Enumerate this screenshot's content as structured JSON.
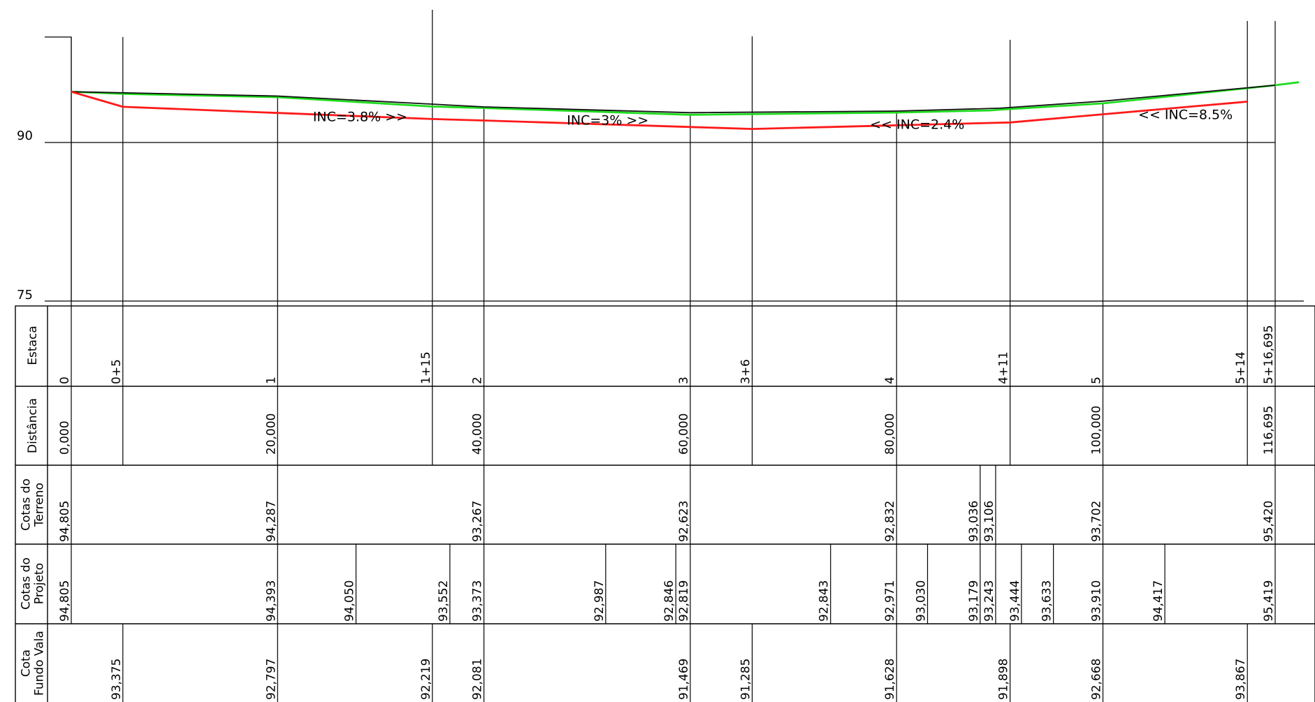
{
  "axis": {
    "y_max_label": "90",
    "y_min_label": "75"
  },
  "chart_data": {
    "type": "line",
    "title": "",
    "xlabel": "",
    "ylabel": "",
    "ylim": [
      75,
      102
    ],
    "xlim": [
      0,
      116.695
    ],
    "series": [
      {
        "color": "#1fdc1f",
        "points": [
          [
            0,
            94.805
          ],
          [
            5,
            94.6
          ],
          [
            20,
            94.287
          ],
          [
            35,
            93.4
          ],
          [
            40,
            93.267
          ],
          [
            60,
            92.623
          ],
          [
            80,
            92.832
          ],
          [
            89,
            93.036
          ],
          [
            90,
            93.106
          ],
          [
            100,
            93.702
          ],
          [
            116.695,
            95.42
          ],
          [
            119,
            95.7
          ]
        ]
      },
      {
        "color": "#111111",
        "points": [
          [
            0,
            94.805
          ],
          [
            20,
            94.393
          ],
          [
            40,
            93.373
          ],
          [
            60,
            92.819
          ],
          [
            80,
            92.971
          ],
          [
            90,
            93.243
          ],
          [
            100,
            93.91
          ],
          [
            116.695,
            95.419
          ]
        ]
      },
      {
        "color": "#ff1a1a",
        "points": [
          [
            0,
            94.805
          ],
          [
            5,
            93.375
          ],
          [
            20,
            92.797
          ],
          [
            35,
            92.219
          ],
          [
            40,
            92.081
          ],
          [
            60,
            91.469
          ],
          [
            66,
            91.285
          ],
          [
            80,
            91.628
          ],
          [
            91,
            91.898
          ],
          [
            100,
            92.668
          ],
          [
            114,
            93.867
          ]
        ]
      }
    ],
    "annotations": [
      {
        "text": "INC=3.8% >>",
        "x": 28,
        "y": 92.0
      },
      {
        "text": "INC=3% >>",
        "x": 52,
        "y": 91.7
      },
      {
        "text": "<< INC=2.4%",
        "x": 82,
        "y": 91.3
      },
      {
        "text": "<< INC=8.5%",
        "x": 108,
        "y": 92.2
      }
    ]
  },
  "table": {
    "row_labels": [
      [
        "Estaca"
      ],
      [
        "Distância"
      ],
      [
        "Cotas do",
        "Terreno"
      ],
      [
        "Cotas do",
        "Projeto"
      ],
      [
        "Cota",
        "Fundo Vala"
      ]
    ],
    "estaca": [
      {
        "x": 0,
        "text": "0"
      },
      {
        "x": 5,
        "text": "0+5"
      },
      {
        "x": 20,
        "text": "1"
      },
      {
        "x": 35,
        "text": "1+15"
      },
      {
        "x": 40,
        "text": "2"
      },
      {
        "x": 60,
        "text": "3"
      },
      {
        "x": 66,
        "text": "3+6"
      },
      {
        "x": 80,
        "text": "4"
      },
      {
        "x": 91,
        "text": "4+11"
      },
      {
        "x": 100,
        "text": "5"
      },
      {
        "x": 114,
        "text": "5+14"
      },
      {
        "x": 116.695,
        "text": "5+16,695"
      }
    ],
    "distancia": [
      {
        "x": 0,
        "text": "0,000"
      },
      {
        "x": 20,
        "text": "20,000"
      },
      {
        "x": 40,
        "text": "40,000"
      },
      {
        "x": 60,
        "text": "60,000"
      },
      {
        "x": 80,
        "text": "80,000"
      },
      {
        "x": 100,
        "text": "100,000"
      },
      {
        "x": 116.695,
        "text": "116,695"
      }
    ],
    "cotas_terreno": [
      {
        "x": 0,
        "text": "94,805"
      },
      {
        "x": 20,
        "text": "94,287"
      },
      {
        "x": 40,
        "text": "93,267"
      },
      {
        "x": 60,
        "text": "92,623"
      },
      {
        "x": 80,
        "text": "92,832"
      },
      {
        "x": 88.1,
        "text": "93,036"
      },
      {
        "x": 89.6,
        "text": "93,106"
      },
      {
        "x": 100,
        "text": "93,702"
      },
      {
        "x": 116.695,
        "text": "95,420"
      }
    ],
    "cotas_projeto": [
      {
        "x": 0,
        "text": "94,805"
      },
      {
        "x": 20,
        "text": "94,393"
      },
      {
        "x": 27.6,
        "text": "94,050"
      },
      {
        "x": 36.7,
        "text": "93,552"
      },
      {
        "x": 40,
        "text": "93,373"
      },
      {
        "x": 51.8,
        "text": "92,987"
      },
      {
        "x": 58.6,
        "text": "92,846"
      },
      {
        "x": 60,
        "text": "92,819"
      },
      {
        "x": 73.6,
        "text": "92,843"
      },
      {
        "x": 80,
        "text": "92,971"
      },
      {
        "x": 83,
        "text": "93,030"
      },
      {
        "x": 88.1,
        "text": "93,179"
      },
      {
        "x": 89.6,
        "text": "93,243"
      },
      {
        "x": 92.1,
        "text": "93,444"
      },
      {
        "x": 95.2,
        "text": "93,633"
      },
      {
        "x": 100,
        "text": "93,910"
      },
      {
        "x": 106,
        "text": "94,417"
      },
      {
        "x": 116.695,
        "text": "95,419"
      }
    ],
    "cota_fundo_vala": [
      {
        "x": 5,
        "text": "93,375"
      },
      {
        "x": 20,
        "text": "92,797"
      },
      {
        "x": 35,
        "text": "92,219"
      },
      {
        "x": 40,
        "text": "92,081"
      },
      {
        "x": 60,
        "text": "91,469"
      },
      {
        "x": 66,
        "text": "91,285"
      },
      {
        "x": 80,
        "text": "91,628"
      },
      {
        "x": 91,
        "text": "91,898"
      },
      {
        "x": 100,
        "text": "92,668"
      },
      {
        "x": 114,
        "text": "93,867"
      }
    ]
  }
}
